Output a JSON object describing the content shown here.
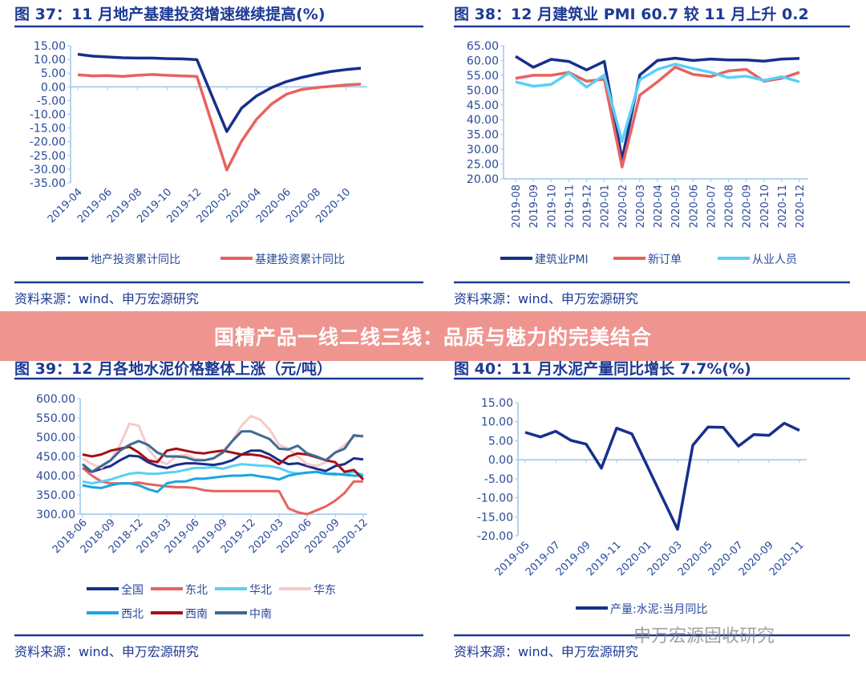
{
  "banner": "国精产品一线二线三线：品质与魅力的完美结合",
  "watermark": "申万宏源固收研究",
  "colors": {
    "title": "#1d3a94",
    "axis": "#9cc6e8",
    "navy": "#172f8c",
    "red": "#e8625e",
    "lightblue": "#5ad0f5",
    "pink": "#f7caca",
    "sky": "#1ba6e0",
    "darkred": "#a50f15",
    "steel": "#3e6a92"
  },
  "chart_data": [
    {
      "type": "line",
      "title": "图 37：11 月地产基建投资增速继续提高(%)",
      "source": "资料来源：wind、申万宏源研究",
      "x": [
        "2019-04",
        "2019-05",
        "2019-06",
        "2019-07",
        "2019-08",
        "2019-09",
        "2019-10",
        "2019-11",
        "2019-12",
        "2020-02",
        "2020-03",
        "2020-04",
        "2020-05",
        "2020-06",
        "2020-07",
        "2020-08",
        "2020-09",
        "2020-10",
        "2020-11"
      ],
      "x_tick_labels": [
        "2019-04",
        "2019-06",
        "2019-08",
        "2019-10",
        "2019-12",
        "2020-02",
        "2020-04",
        "2020-06",
        "2020-08",
        "2020-10"
      ],
      "y_tick_labels": [
        "15.00",
        "10.00",
        "5.00",
        "0.00",
        "-5.00",
        "-10.00",
        "-15.00",
        "-20.00",
        "-25.00",
        "-30.00",
        "-35.00"
      ],
      "ylim": [
        -35,
        15
      ],
      "grid": false,
      "legend": "bottom",
      "series": [
        {
          "name": "地产投资累计同比",
          "color": "#172f8c",
          "values": [
            11.9,
            11.2,
            10.9,
            10.6,
            10.5,
            10.5,
            10.3,
            10.2,
            9.9,
            -16.3,
            -7.7,
            -3.3,
            -0.3,
            1.9,
            3.4,
            4.6,
            5.6,
            6.3,
            6.8
          ]
        },
        {
          "name": "基建投资累计同比",
          "color": "#e8625e",
          "values": [
            4.4,
            4.0,
            4.1,
            3.8,
            4.2,
            4.5,
            4.2,
            4.0,
            3.8,
            -30.3,
            -19.7,
            -11.8,
            -6.3,
            -2.7,
            -1.0,
            -0.3,
            0.2,
            0.7,
            1.0
          ]
        }
      ]
    },
    {
      "type": "line",
      "title": "图 38：12 月建筑业 PMI 60.7 较 11 月上升 0.2",
      "source": "资料来源：wind、申万宏源研究",
      "x": [
        "2019-08",
        "2019-09",
        "2019-10",
        "2019-11",
        "2019-12",
        "2020-01",
        "2020-02",
        "2020-03",
        "2020-04",
        "2020-05",
        "2020-06",
        "2020-07",
        "2020-08",
        "2020-09",
        "2020-10",
        "2020-11",
        "2020-12"
      ],
      "x_tick_labels": [
        "2019-08",
        "2019-09",
        "2019-10",
        "2019-11",
        "2019-12",
        "2020-01",
        "2020-02",
        "2020-03",
        "2020-04",
        "2020-05",
        "2020-06",
        "2020-07",
        "2020-08",
        "2020-09",
        "2020-10",
        "2020-11",
        "2020-12"
      ],
      "y_tick_labels": [
        "65.00",
        "60.00",
        "55.00",
        "50.00",
        "45.00",
        "40.00",
        "35.00",
        "30.00",
        "25.00",
        "20.00"
      ],
      "ylim": [
        20,
        65
      ],
      "grid": false,
      "legend": "bottom",
      "series": [
        {
          "name": "建筑业PMI",
          "color": "#172f8c",
          "values": [
            61.4,
            57.7,
            60.4,
            59.7,
            56.8,
            59.7,
            26.6,
            55.1,
            60.0,
            60.8,
            60.0,
            60.5,
            60.2,
            60.2,
            59.8,
            60.5,
            60.7
          ]
        },
        {
          "name": "新订单",
          "color": "#e8625e",
          "values": [
            54.0,
            55.0,
            55.0,
            56.0,
            53.0,
            53.7,
            24.0,
            48.3,
            52.8,
            57.8,
            55.3,
            54.6,
            56.5,
            57.0,
            53.0,
            54.0,
            56.0
          ]
        },
        {
          "name": "从业人员",
          "color": "#5ad0f5",
          "values": [
            52.8,
            51.3,
            51.9,
            55.8,
            51.0,
            55.1,
            32.6,
            53.5,
            57.0,
            58.8,
            57.3,
            56.0,
            54.2,
            54.7,
            53.3,
            54.5,
            52.8
          ]
        }
      ]
    },
    {
      "type": "line",
      "title": "图 39：12 月各地水泥价格整体上涨（元/吨）",
      "source": "资料来源：wind、申万宏源研究",
      "x_start": "2018-06",
      "x_end": "2020-12",
      "x_tick_labels": [
        "2018-06",
        "2018-09",
        "2018-12",
        "2019-03",
        "2019-06",
        "2019-09",
        "2019-12",
        "2020-03",
        "2020-06",
        "2020-09",
        "2020-12"
      ],
      "y_tick_labels": [
        "600.00",
        "550.00",
        "500.00",
        "450.00",
        "400.00",
        "350.00",
        "300.00"
      ],
      "ylim": [
        300,
        600
      ],
      "grid": false,
      "legend": "bottom",
      "series": [
        {
          "name": "全国",
          "color": "#172f8c",
          "values": [
            420,
            410,
            418,
            425,
            440,
            452,
            450,
            435,
            425,
            420,
            428,
            432,
            432,
            430,
            428,
            432,
            440,
            455,
            465,
            465,
            455,
            440,
            430,
            432,
            425,
            418,
            412,
            425,
            430,
            445,
            442
          ]
        },
        {
          "name": "东北",
          "color": "#e8625e",
          "values": [
            420,
            400,
            385,
            380,
            380,
            380,
            382,
            378,
            375,
            372,
            370,
            370,
            368,
            362,
            360,
            360,
            360,
            360,
            360,
            360,
            360,
            360,
            315,
            305,
            300,
            310,
            320,
            335,
            355,
            385,
            385
          ]
        },
        {
          "name": "华北",
          "color": "#5ad0f5",
          "values": [
            385,
            380,
            385,
            390,
            398,
            405,
            408,
            405,
            405,
            408,
            410,
            415,
            420,
            420,
            422,
            418,
            425,
            430,
            428,
            426,
            425,
            420,
            410,
            405,
            408,
            410,
            405,
            402,
            405,
            410,
            402
          ]
        },
        {
          "name": "华东",
          "color": "#f7caca",
          "values": [
            445,
            430,
            420,
            440,
            480,
            535,
            530,
            470,
            440,
            430,
            450,
            455,
            445,
            440,
            445,
            465,
            490,
            530,
            555,
            545,
            520,
            480,
            470,
            450,
            430,
            425,
            435,
            460,
            480,
            500,
            505
          ]
        },
        {
          "name": "西北",
          "color": "#1ba6e0",
          "values": [
            375,
            370,
            368,
            375,
            380,
            380,
            375,
            365,
            358,
            380,
            385,
            385,
            392,
            392,
            395,
            398,
            400,
            400,
            402,
            398,
            395,
            390,
            400,
            405,
            408,
            410,
            405,
            405,
            402,
            400,
            400
          ]
        },
        {
          "name": "西南",
          "color": "#a50f15",
          "values": [
            455,
            450,
            455,
            465,
            470,
            475,
            460,
            440,
            435,
            465,
            470,
            465,
            460,
            458,
            462,
            465,
            460,
            455,
            455,
            452,
            445,
            430,
            450,
            458,
            455,
            448,
            440,
            435,
            410,
            415,
            390
          ]
        },
        {
          "name": "中南",
          "color": "#3e6a92",
          "values": [
            430,
            410,
            425,
            440,
            465,
            480,
            490,
            480,
            460,
            450,
            450,
            448,
            440,
            440,
            445,
            460,
            490,
            515,
            515,
            505,
            495,
            470,
            468,
            478,
            458,
            450,
            440,
            460,
            470,
            505,
            502
          ]
        }
      ]
    },
    {
      "type": "line",
      "title": "图 40：11 月水泥产量同比增长 7.7%(%)",
      "source": "资料来源：wind、申万宏源研究",
      "x": [
        "2019-05",
        "2019-06",
        "2019-07",
        "2019-08",
        "2019-09",
        "2019-10",
        "2019-11",
        "2019-12",
        "2020-03",
        "2020-04",
        "2020-05",
        "2020-06",
        "2020-07",
        "2020-08",
        "2020-09",
        "2020-10",
        "2020-11"
      ],
      "x_tick_labels": [
        "2019-05",
        "2019-07",
        "2019-09",
        "2019-11",
        "2020-01",
        "2020-03",
        "2020-05",
        "2020-07",
        "2020-09",
        "2020-11"
      ],
      "y_tick_labels": [
        "15.00",
        "10.00",
        "5.00",
        "0.00",
        "-5.00",
        "-10.00",
        "-15.00",
        "-20.00"
      ],
      "ylim": [
        -20,
        15
      ],
      "grid": false,
      "legend": "bottom",
      "series": [
        {
          "name": "产量:水泥:当月同比",
          "color": "#172f8c",
          "values": [
            7.2,
            6.0,
            7.5,
            5.1,
            4.1,
            -2.2,
            8.3,
            6.8,
            -18.3,
            3.8,
            8.6,
            8.5,
            3.6,
            6.6,
            6.4,
            9.6,
            7.7
          ]
        }
      ]
    }
  ]
}
